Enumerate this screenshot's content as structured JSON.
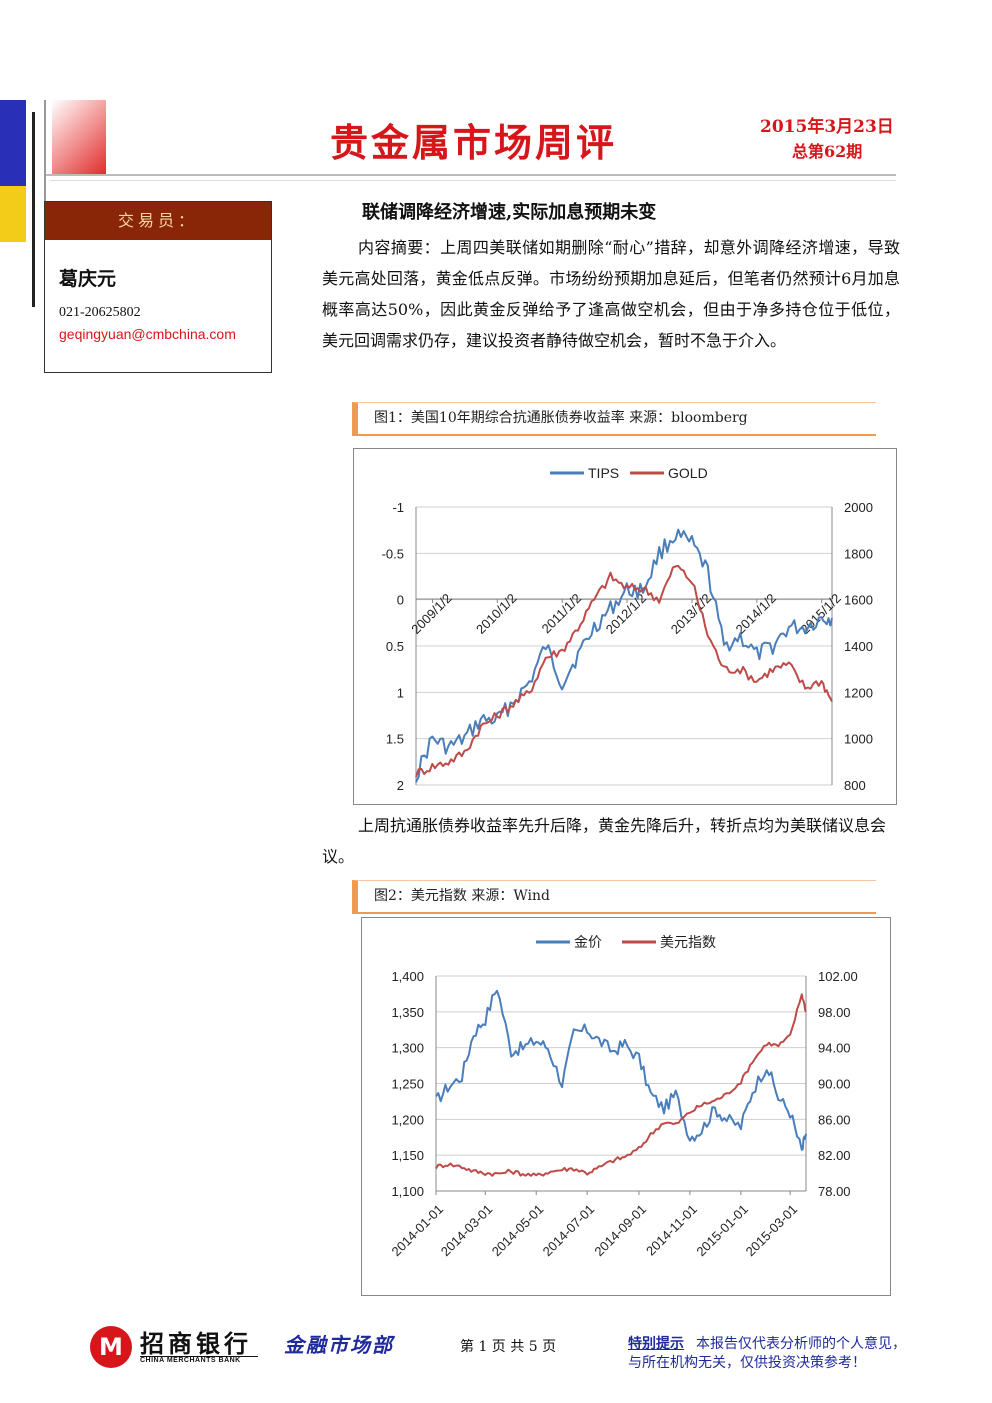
{
  "header": {
    "title": "贵金属市场周评",
    "date": "2015年3月23日",
    "issue": "总第62期"
  },
  "trader": {
    "heading": "交易员：",
    "name": "葛庆元",
    "phone": "021-20625802",
    "email": "geqingyuan@cmbchina.com"
  },
  "article": {
    "headline": "联储调降经济增速,实际加息预期未变",
    "summary": "内容摘要：上周四美联储如期删除“耐心”措辞，却意外调降经济增速，导致美元高处回落，黄金低点反弹。市场纷纷预期加息延后，但笔者仍然预计6月加息概率高达50%，因此黄金反弹给予了逢高做空机会，但由于净多持仓位于低位，美元回调需求仍存，建议投资者静待做空机会，暂时不急于介入。",
    "fig1_caption": "图1：美国10年期综合抗通胀债券收益率   来源：bloomberg",
    "fig1_comment": "上周抗通胀债券收益率先升后降，黄金先降后升，转折点均为美联储议息会议。",
    "fig2_caption": "图2：美元指数   来源：Wind"
  },
  "chart_data": [
    {
      "type": "line",
      "legend_position": "top",
      "series": [
        {
          "name": "TIPS",
          "axis": "left",
          "color": "#4a7ebb",
          "x": [
            "2008/10",
            "2009/1",
            "2009/4",
            "2009/7",
            "2009/10",
            "2010/1",
            "2010/4",
            "2010/7",
            "2010/10",
            "2011/1",
            "2011/4",
            "2011/7",
            "2011/10",
            "2012/1",
            "2012/4",
            "2012/7",
            "2012/10",
            "2013/1",
            "2013/4",
            "2013/7",
            "2013/10",
            "2014/1",
            "2014/4",
            "2014/7",
            "2014/10",
            "2015/1",
            "2015/3"
          ],
          "values": [
            1.9,
            1.5,
            1.6,
            1.5,
            1.3,
            1.3,
            1.1,
            0.9,
            0.5,
            0.9,
            0.6,
            0.3,
            0.1,
            -0.1,
            -0.1,
            -0.5,
            -0.7,
            -0.6,
            -0.3,
            0.5,
            0.4,
            0.6,
            0.5,
            0.3,
            0.3,
            0.2,
            0.2
          ]
        },
        {
          "name": "GOLD",
          "axis": "right",
          "color": "#be4b48",
          "x": [
            "2008/10",
            "2009/1",
            "2009/4",
            "2009/7",
            "2009/10",
            "2010/1",
            "2010/4",
            "2010/7",
            "2010/10",
            "2011/1",
            "2011/4",
            "2011/7",
            "2011/10",
            "2012/1",
            "2012/4",
            "2012/7",
            "2012/10",
            "2013/1",
            "2013/4",
            "2013/7",
            "2013/10",
            "2014/1",
            "2014/4",
            "2014/7",
            "2014/10",
            "2015/1",
            "2015/3"
          ],
          "values": [
            850,
            880,
            900,
            940,
            1050,
            1100,
            1150,
            1200,
            1350,
            1380,
            1480,
            1600,
            1700,
            1650,
            1650,
            1600,
            1750,
            1680,
            1450,
            1300,
            1300,
            1250,
            1300,
            1320,
            1220,
            1250,
            1160
          ]
        }
      ],
      "x_tick_labels": [
        "2009/1/2",
        "2010/1/2",
        "2011/1/2",
        "2012/1/2",
        "2013/1/2",
        "2014/1/2",
        "2015/1/2"
      ],
      "y_left": {
        "ticks": [
          "-1",
          "-0.5",
          "0",
          "0.5",
          "1",
          "1.5",
          "2"
        ],
        "range": [
          2,
          -1
        ],
        "reversed": true
      },
      "y_right": {
        "ticks": [
          "2000",
          "1800",
          "1600",
          "1400",
          "1200",
          "1000",
          "800"
        ],
        "range": [
          800,
          2000
        ]
      }
    },
    {
      "type": "line",
      "legend_position": "top",
      "series": [
        {
          "name": "金价",
          "axis": "left",
          "color": "#4a7ebb",
          "x": [
            "2014-01-01",
            "2014-01-15",
            "2014-02-01",
            "2014-02-15",
            "2014-03-01",
            "2014-03-15",
            "2014-04-01",
            "2014-04-15",
            "2014-05-01",
            "2014-05-15",
            "2014-06-01",
            "2014-06-15",
            "2014-07-01",
            "2014-07-15",
            "2014-08-01",
            "2014-08-15",
            "2014-09-01",
            "2014-09-15",
            "2014-10-01",
            "2014-10-15",
            "2014-11-01",
            "2014-11-15",
            "2014-12-01",
            "2014-12-15",
            "2015-01-01",
            "2015-01-15",
            "2015-02-01",
            "2015-02-15",
            "2015-03-01",
            "2015-03-15",
            "2015-03-20"
          ],
          "values": [
            1225,
            1245,
            1260,
            1320,
            1340,
            1385,
            1295,
            1300,
            1310,
            1300,
            1250,
            1320,
            1325,
            1310,
            1295,
            1305,
            1285,
            1235,
            1215,
            1235,
            1175,
            1185,
            1215,
            1200,
            1190,
            1240,
            1275,
            1230,
            1210,
            1155,
            1180
          ]
        },
        {
          "name": "美元指数",
          "axis": "right",
          "color": "#be4b48",
          "x": [
            "2014-01-01",
            "2014-01-15",
            "2014-02-01",
            "2014-02-15",
            "2014-03-01",
            "2014-03-15",
            "2014-04-01",
            "2014-04-15",
            "2014-05-01",
            "2014-05-15",
            "2014-06-01",
            "2014-06-15",
            "2014-07-01",
            "2014-07-15",
            "2014-08-01",
            "2014-08-15",
            "2014-09-01",
            "2014-09-15",
            "2014-10-01",
            "2014-10-15",
            "2014-11-01",
            "2014-11-15",
            "2014-12-01",
            "2014-12-15",
            "2015-01-01",
            "2015-01-15",
            "2015-02-01",
            "2015-02-15",
            "2015-03-01",
            "2015-03-15",
            "2015-03-20"
          ],
          "values": [
            80.7,
            81.0,
            80.7,
            80.2,
            80.0,
            79.9,
            80.2,
            79.9,
            79.7,
            80.1,
            80.4,
            80.5,
            80.0,
            80.6,
            81.4,
            81.8,
            82.7,
            84.3,
            85.7,
            85.4,
            86.8,
            87.6,
            88.1,
            88.8,
            90.2,
            92.5,
            94.5,
            94.2,
            95.3,
            100.0,
            98.0
          ]
        }
      ],
      "x_tick_labels": [
        "2014-01-01",
        "2014-03-01",
        "2014-05-01",
        "2014-07-01",
        "2014-09-01",
        "2014-11-01",
        "2015-01-01",
        "2015-03-01"
      ],
      "y_left": {
        "ticks": [
          "1,400",
          "1,350",
          "1,300",
          "1,250",
          "1,200",
          "1,150",
          "1,100"
        ],
        "range": [
          1100,
          1400
        ]
      },
      "y_right": {
        "ticks": [
          "102.00",
          "98.00",
          "94.00",
          "90.00",
          "86.00",
          "82.00",
          "78.00"
        ],
        "range": [
          78,
          102
        ]
      }
    }
  ],
  "footer": {
    "bank_name": "招商银行",
    "bank_name_en": "CHINA MERCHANTS BANK",
    "logo_glyph": "M",
    "department": "金融市场部",
    "page": "第 1 页 共 5 页",
    "notice_heading": "特别提示",
    "notice_line1": "本报告仅代表分析师的个人意见，",
    "notice_line2": "与所在机构无关，仅供投资决策参考！"
  },
  "colors": {
    "accent_red": "#d7161b",
    "trader_head_bg": "#8a2608",
    "footer_blue": "#1f2a9c",
    "fig_label_orange": "#f09a50"
  }
}
